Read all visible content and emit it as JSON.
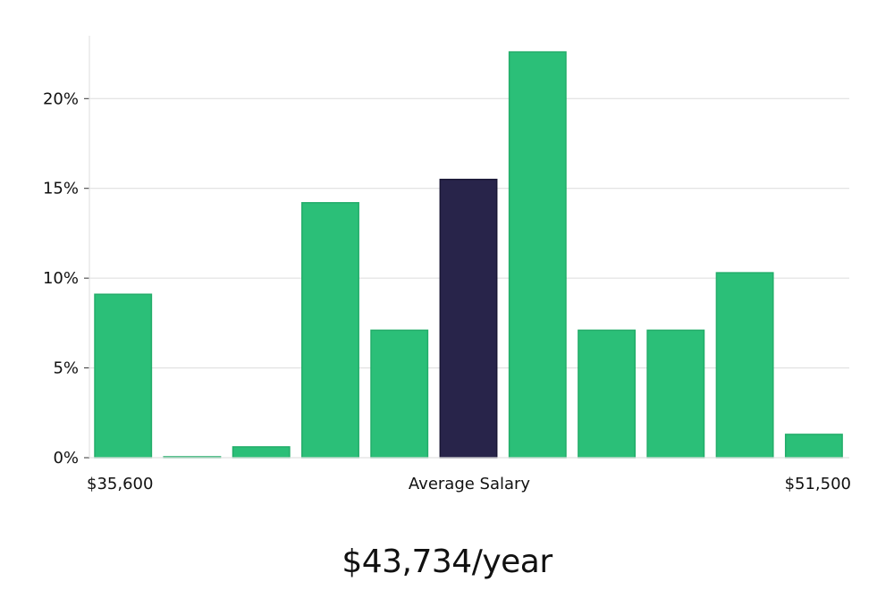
{
  "chart_data": {
    "type": "bar",
    "ylim": [
      0,
      23.5
    ],
    "yticks": [
      0,
      5,
      10,
      15,
      20
    ],
    "ytick_labels": [
      "0%",
      "5%",
      "10%",
      "15%",
      "20%"
    ],
    "values": [
      9.1,
      0.05,
      0.6,
      14.2,
      7.1,
      15.5,
      22.6,
      7.1,
      7.1,
      10.3,
      1.3
    ],
    "highlight_index": 5,
    "colors": {
      "bar": "#2bbf78",
      "bar_stroke": "#23ad6a",
      "highlight": "#28244a"
    },
    "grid": true,
    "x_labels": {
      "left": "$35,600",
      "center": "Average Salary",
      "right": "$51,500"
    }
  },
  "salary_text": "$43,734/year"
}
